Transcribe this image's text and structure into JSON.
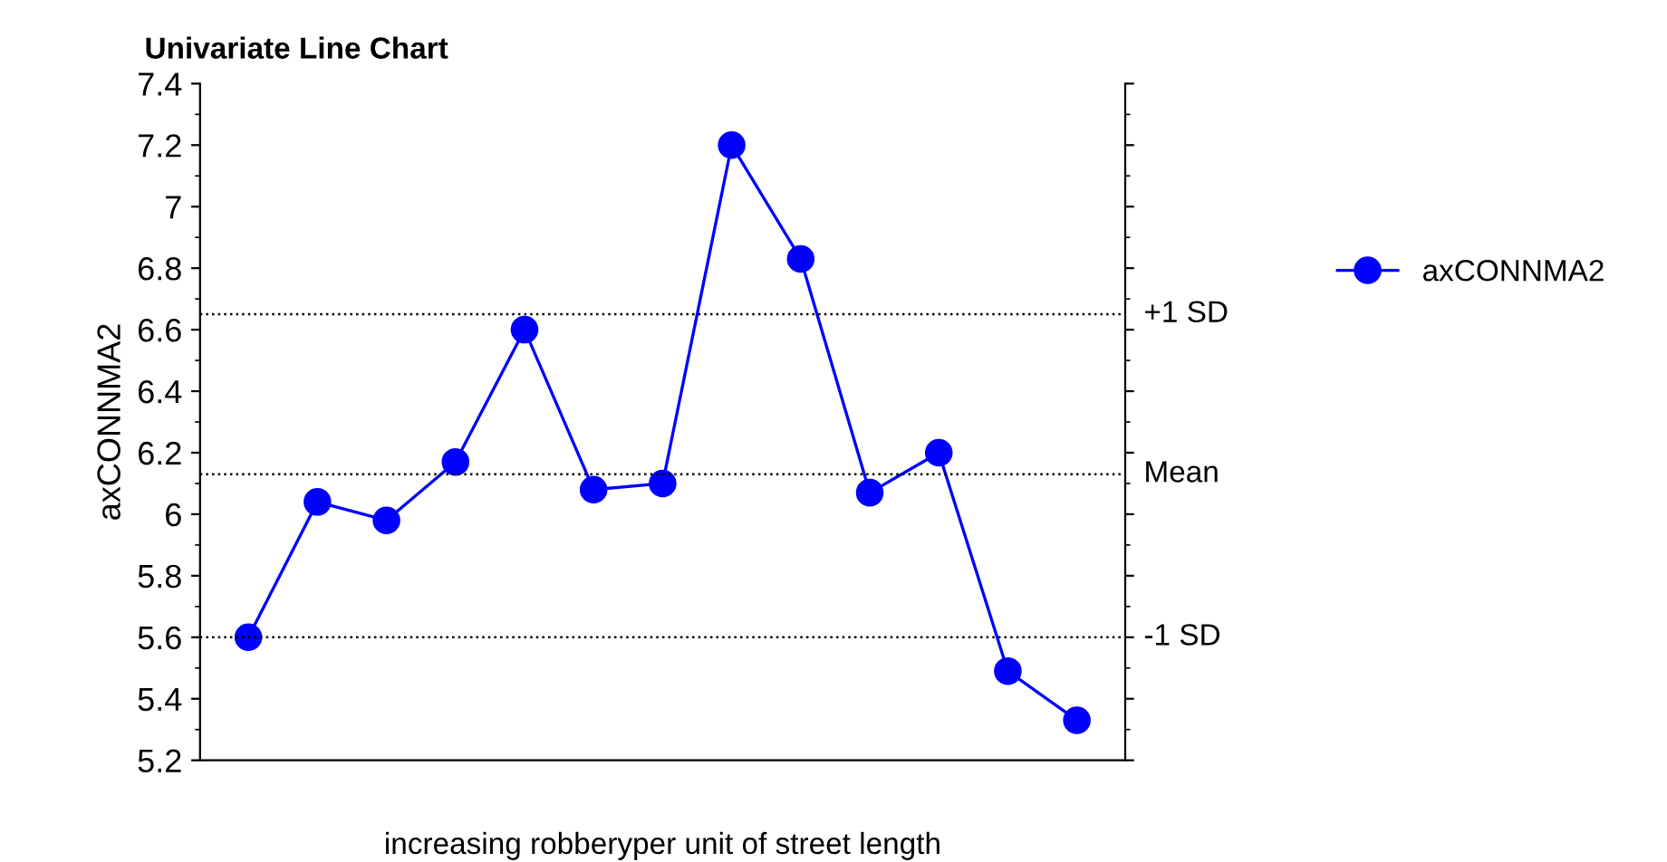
{
  "chart_data": {
    "type": "line",
    "title": "Univariate Line Chart",
    "xlabel": "increasing robberyper unit of street length",
    "ylabel": "axCONNMA2",
    "categories": [
      null,
      null,
      null,
      null,
      null,
      null,
      null,
      null,
      null,
      null,
      null,
      null,
      null
    ],
    "series": [
      {
        "name": "axCONNMA2",
        "color": "#0000ff",
        "values": [
          5.6,
          6.04,
          5.98,
          6.17,
          6.6,
          6.08,
          6.1,
          7.2,
          6.83,
          6.07,
          6.2,
          5.49,
          5.33
        ]
      }
    ],
    "ylim": [
      5.2,
      7.4
    ],
    "yticks": [
      5.2,
      5.4,
      5.6,
      5.8,
      6,
      6.2,
      6.4,
      6.6,
      6.8,
      7,
      7.2,
      7.4
    ],
    "ref_lines": [
      {
        "axis": "y",
        "value": 6.65,
        "label": "+1 SD",
        "color": "#000000",
        "line_style": "dotted"
      },
      {
        "axis": "y",
        "value": 6.13,
        "label": "Mean",
        "color": "#000000",
        "line_style": "dotted"
      },
      {
        "axis": "y",
        "value": 5.6,
        "label": "-1 SD",
        "color": "#000000",
        "line_style": "dotted"
      }
    ],
    "marker": "circle",
    "line_style": "solid",
    "grid": false,
    "legend": "right"
  }
}
